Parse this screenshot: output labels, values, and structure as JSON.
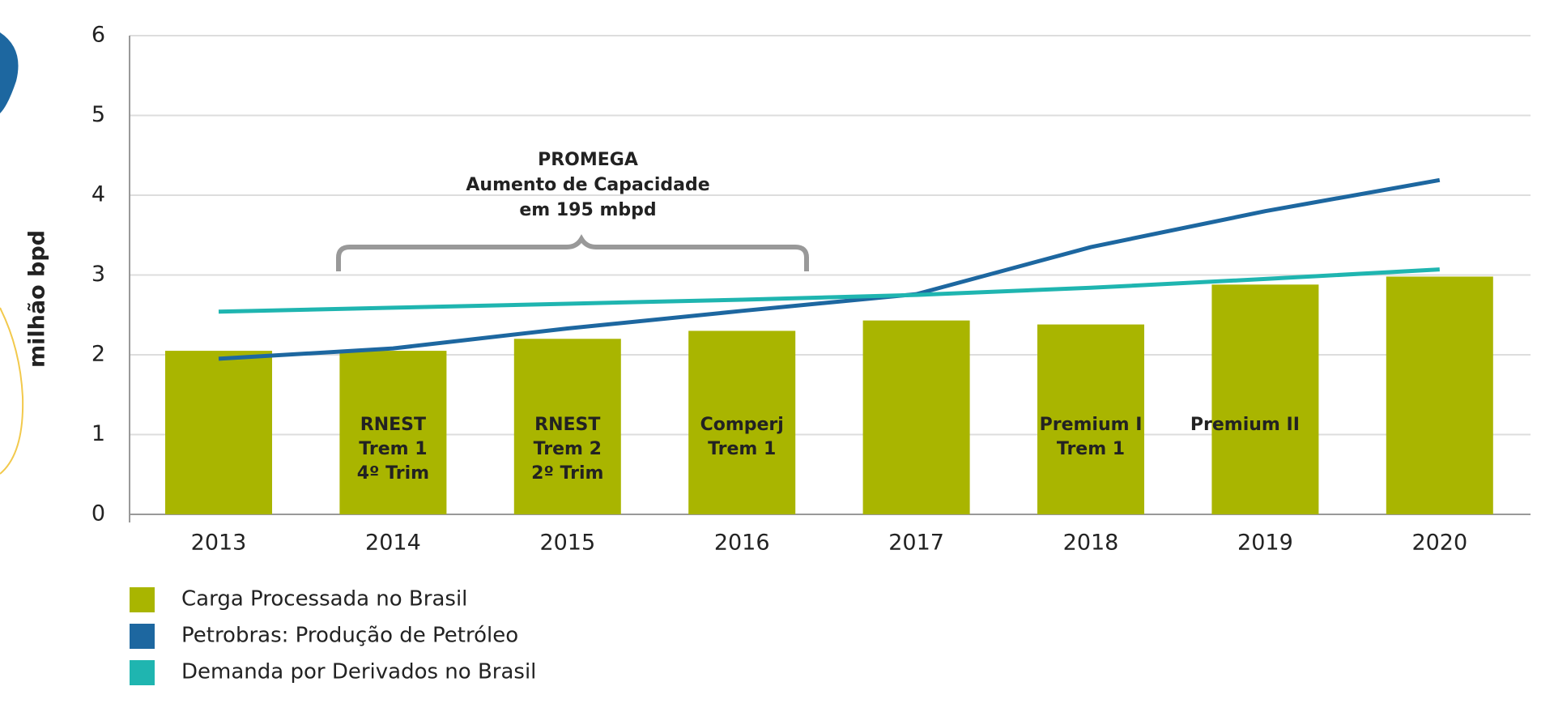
{
  "chart_data": {
    "type": "bar-line",
    "y_label": "milhão bpd",
    "categories": [
      "2013",
      "2014",
      "2015",
      "2016",
      "2017",
      "2018",
      "2019",
      "2020"
    ],
    "ylim": [
      0,
      6
    ],
    "yticks": [
      0,
      1,
      2,
      3,
      4,
      5,
      6
    ],
    "grid": true,
    "series": [
      {
        "name": "Carga Processada no Brasil",
        "type": "bar",
        "color": "#a9b500",
        "values": [
          2.05,
          2.05,
          2.2,
          2.3,
          2.43,
          2.38,
          2.88,
          2.98
        ]
      },
      {
        "name": "Petrobras: Produção de Petróleo",
        "type": "line",
        "color": "#1d67a0",
        "values": [
          1.95,
          2.08,
          2.33,
          2.55,
          2.76,
          3.35,
          3.8,
          4.19
        ]
      },
      {
        "name": "Demanda por Derivados no Brasil",
        "type": "line",
        "color": "#1fb5b0",
        "values": [
          2.54,
          2.59,
          2.64,
          2.69,
          2.75,
          2.84,
          2.95,
          3.07
        ]
      }
    ],
    "bar_annotations": [
      null,
      [
        "RNEST",
        "Trem 1",
        "4º Trim"
      ],
      [
        "RNEST",
        "Trem 2",
        "2º Trim"
      ],
      [
        "Comperj",
        "Trem 1"
      ],
      null,
      [
        "Premium I",
        "Trem 1"
      ],
      [
        "Premium II"
      ],
      null
    ],
    "bracket_annotation": [
      "PROMEGA",
      "Aumento de Capacidade",
      "em 195 mbpd"
    ]
  }
}
